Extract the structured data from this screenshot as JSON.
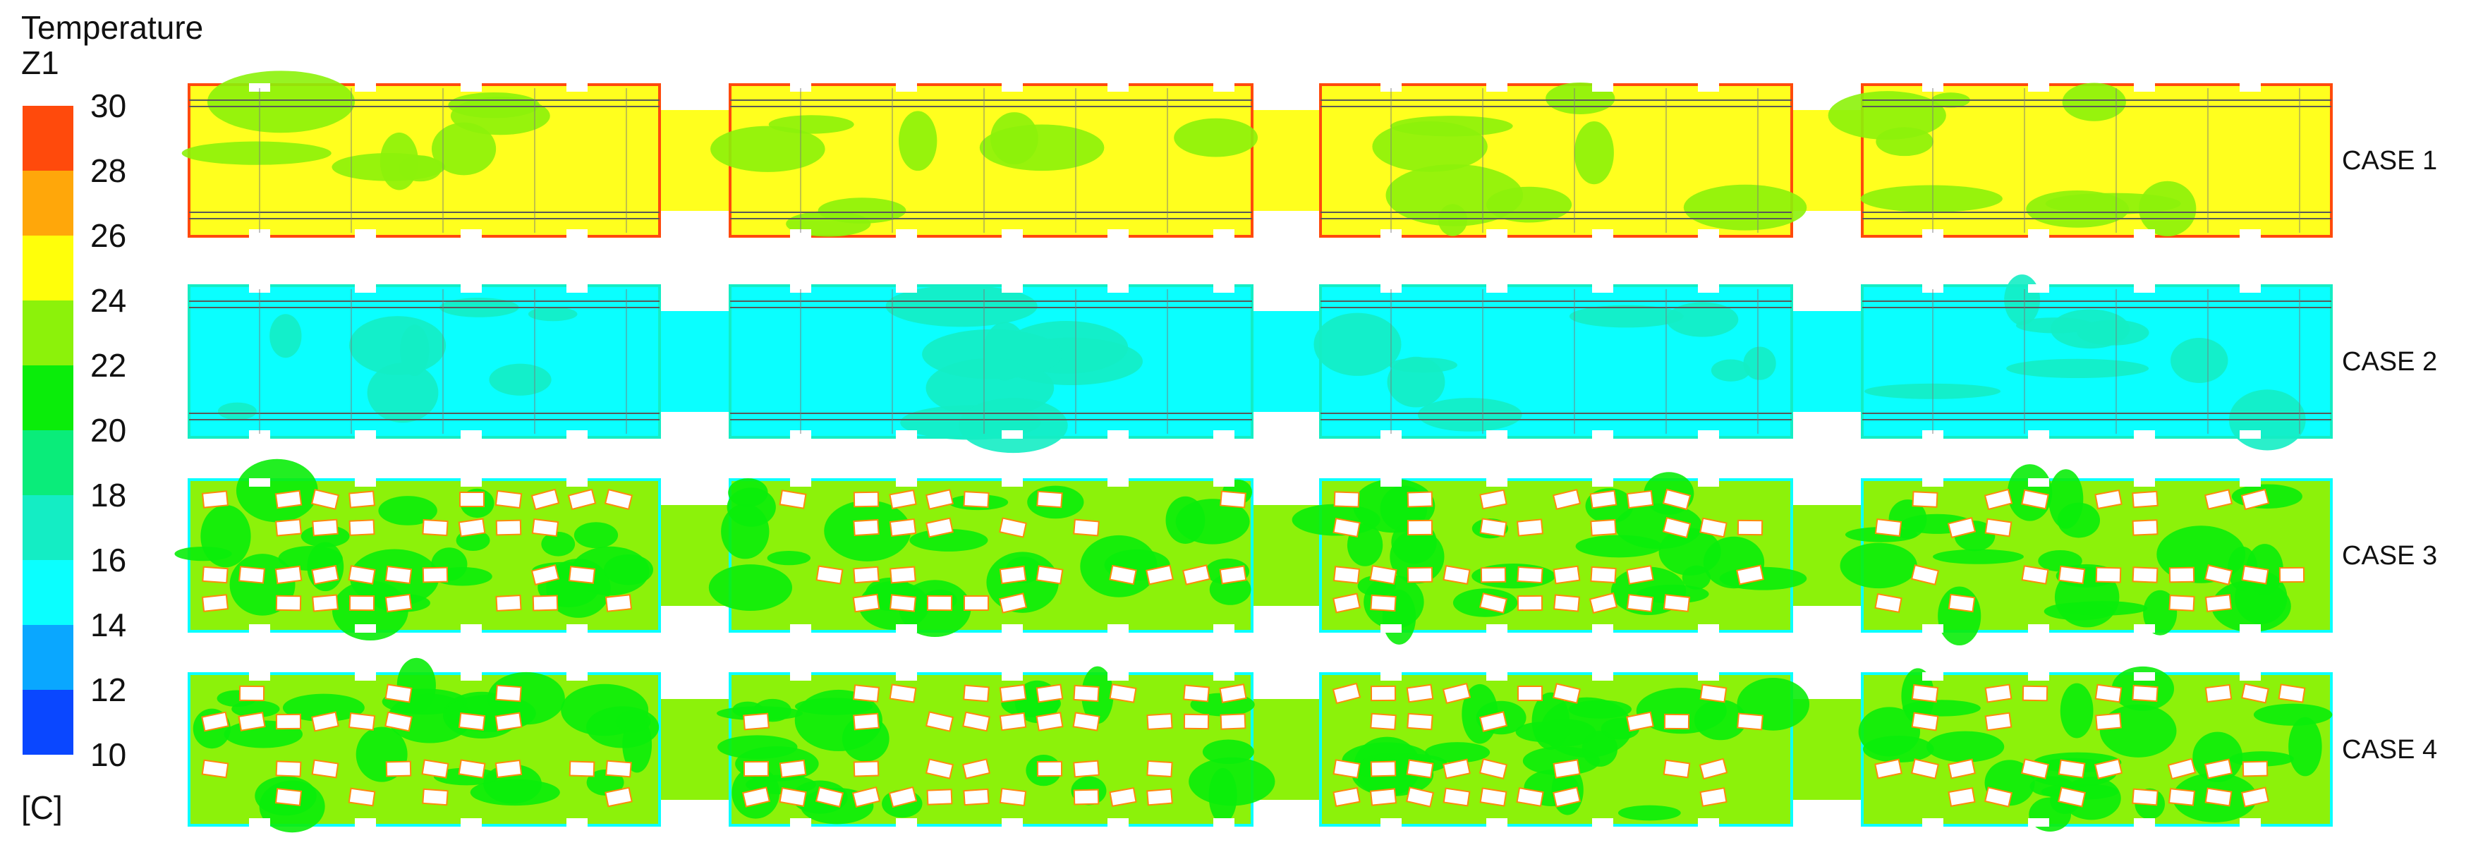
{
  "legend": {
    "title": "Temperature",
    "subtitle": "Z1",
    "unit": "[C]",
    "ticks": [
      "30",
      "28",
      "26",
      "24",
      "22",
      "20",
      "18",
      "16",
      "14",
      "12",
      "10"
    ],
    "bands": [
      {
        "from": 28,
        "to": 30,
        "color": "#ff4a0c"
      },
      {
        "from": 26,
        "to": 28,
        "color": "#ffa70a"
      },
      {
        "from": 24,
        "to": 26,
        "color": "#ffff0a"
      },
      {
        "from": 22,
        "to": 24,
        "color": "#8cf20a"
      },
      {
        "from": 20,
        "to": 22,
        "color": "#0aed0a"
      },
      {
        "from": 18,
        "to": 20,
        "color": "#0aec7a"
      },
      {
        "from": 16,
        "to": 18,
        "color": "#14edc4"
      },
      {
        "from": 14,
        "to": 16,
        "color": "#0affff"
      },
      {
        "from": 12,
        "to": 14,
        "color": "#0aa7ff"
      },
      {
        "from": 10,
        "to": 12,
        "color": "#0a47ff"
      }
    ]
  },
  "cases": [
    {
      "label": "CASE 1",
      "base_color": "#ffff1e",
      "patch_color": "#8cf20a",
      "edge_color": "#ff4a0c",
      "has_seats": false
    },
    {
      "label": "CASE 2",
      "base_color": "#0affff",
      "patch_color": "#14edc4",
      "edge_color": "#14edc4",
      "has_seats": false
    },
    {
      "label": "CASE 3",
      "base_color": "#8cf20a",
      "patch_color": "#0aed0a",
      "edge_color": "#0affff",
      "has_seats": true
    },
    {
      "label": "CASE 4",
      "base_color": "#8cf20a",
      "patch_color": "#0aed0a",
      "edge_color": "#0affff",
      "has_seats": true
    }
  ]
}
